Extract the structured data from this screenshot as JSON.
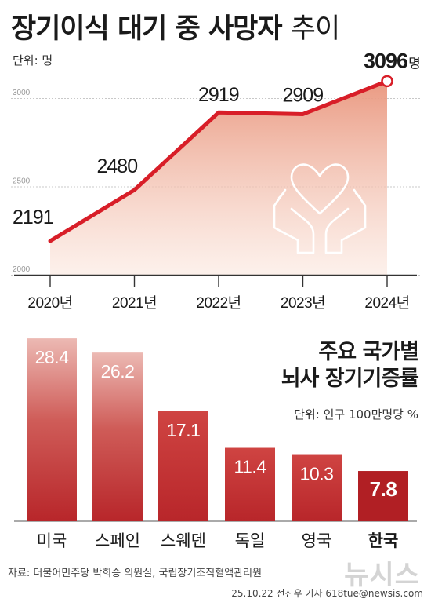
{
  "title": {
    "bold": "장기이식 대기 중 사망자",
    "light": "추이"
  },
  "line_unit": "단위: 명",
  "bar_title": [
    "주요 국가별",
    "뇌사 장기기증률"
  ],
  "bar_unit": "단위: 인구 100만명당 %",
  "source": "자료: 더불어민주당 박희승 의원실, 국립장기조직혈액관리원",
  "credit": "25.10.22 전진우 기자 618tue@newsis.com",
  "watermark": "뉴시스",
  "icon": "heart-in-hands-icon",
  "colors": {
    "line": "#d81e28",
    "bar_top": "#c92a2d",
    "bar_dark": "#b11f24",
    "bar_fade": "#e8a9a3"
  },
  "chart_data": [
    {
      "type": "line",
      "title": "장기이식 대기 중 사망자 추이",
      "x": [
        "2020년",
        "2021년",
        "2022년",
        "2023년",
        "2024년"
      ],
      "values": [
        2191,
        2480,
        2919,
        2909,
        3096
      ],
      "value_labels": [
        "2191",
        "2480",
        "2919",
        "2909",
        "3096명"
      ],
      "y_ticks": [
        "2000",
        "2500",
        "3000"
      ],
      "ylim": [
        2000,
        3000
      ],
      "area_fill": true,
      "highlight_last": true
    },
    {
      "type": "bar",
      "title": "주요 국가별 뇌사 장기기증률",
      "categories": [
        "미국",
        "스페인",
        "스웨덴",
        "독일",
        "영국",
        "한국"
      ],
      "values": [
        28.4,
        26.2,
        17.1,
        11.4,
        10.3,
        7.8
      ],
      "value_labels": [
        "28.4",
        "26.2",
        "17.1",
        "11.4",
        "10.3",
        "7.8"
      ],
      "highlight": "한국"
    }
  ]
}
